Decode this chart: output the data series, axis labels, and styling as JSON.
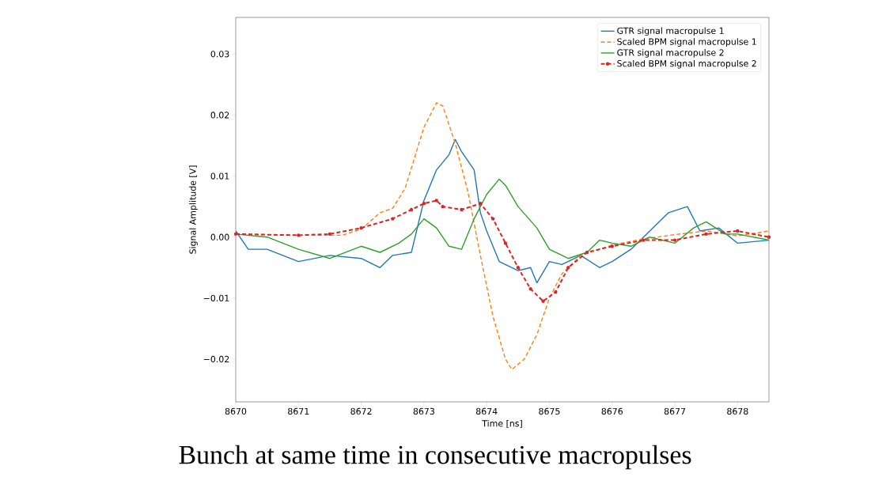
{
  "chart_data": {
    "type": "line",
    "xlabel": "Time [ns]",
    "ylabel": "Signal Amplitude [V]",
    "xlim": [
      8670,
      8678.5
    ],
    "xticks": [
      8670,
      8671,
      8672,
      8673,
      8674,
      8675,
      8676,
      8677,
      8678
    ],
    "ylim": [
      -0.027,
      0.036
    ],
    "yticks": [
      {
        "value": -0.02,
        "label": "−0.02"
      },
      {
        "value": -0.01,
        "label": "−0.01"
      },
      {
        "value": 0,
        "label": "0.00"
      },
      {
        "value": 0.01,
        "label": "0.01"
      },
      {
        "value": 0.02,
        "label": "0.02"
      },
      {
        "value": 0.03,
        "label": "0.03"
      }
    ],
    "legend": "top right",
    "grid": false,
    "annotations": [
      "Bunch at same time in consecutive macropulses"
    ],
    "series": [
      {
        "name": "GTR signal macropulse 1",
        "color": "#1f77b4",
        "line_style": "solid",
        "x": [
          8670,
          8670.2,
          8670.5,
          8671,
          8671.5,
          8672,
          8672.3,
          8672.5,
          8672.8,
          8673,
          8673.2,
          8673.4,
          8673.5,
          8673.6,
          8673.8,
          8673.9,
          8674,
          8674.2,
          8674.5,
          8674.7,
          8674.8,
          8675,
          8675.2,
          8675.5,
          8675.8,
          8676,
          8676.3,
          8676.6,
          8676.9,
          8677.2,
          8677.4,
          8677.7,
          8678,
          8678.5
        ],
        "values": [
          0.001,
          -0.002,
          -0.002,
          -0.004,
          -0.003,
          -0.0035,
          -0.005,
          -0.003,
          -0.0025,
          0.006,
          0.011,
          0.0135,
          0.016,
          0.014,
          0.011,
          0.004,
          0.001,
          -0.004,
          -0.0055,
          -0.005,
          -0.0075,
          -0.004,
          -0.0045,
          -0.003,
          -0.005,
          -0.004,
          -0.002,
          0.001,
          0.004,
          0.005,
          0.001,
          0.0015,
          -0.001,
          -0.0005
        ]
      },
      {
        "name": "Scaled BPM signal macropulse 1",
        "color": "#ff7f0e",
        "line_style": "dashed",
        "x": [
          8670,
          8671,
          8671.7,
          8672,
          8672.3,
          8672.5,
          8672.7,
          8673,
          8673.2,
          8673.3,
          8673.5,
          8673.7,
          8673.9,
          8674.1,
          8674.3,
          8674.4,
          8674.6,
          8674.8,
          8675,
          8675.2,
          8675.5,
          8676,
          8676.5,
          8677,
          8677.5,
          8678,
          8678.5
        ],
        "values": [
          0.0005,
          0.0003,
          0.0003,
          0.0013,
          0.004,
          0.0047,
          0.008,
          0.018,
          0.022,
          0.0215,
          0.0153,
          0.0075,
          -0.003,
          -0.013,
          -0.02,
          -0.0217,
          -0.02,
          -0.016,
          -0.01,
          -0.006,
          -0.003,
          -0.0013,
          -0.0003,
          0.0004,
          0.001,
          0.0002,
          0.001
        ]
      },
      {
        "name": "GTR signal macropulse 2",
        "color": "#2ca02c",
        "line_style": "solid",
        "x": [
          8670,
          8670.5,
          8671,
          8671.5,
          8672,
          8672.3,
          8672.6,
          8672.8,
          8673,
          8673.2,
          8673.4,
          8673.6,
          8673.8,
          8674,
          8674.2,
          8674.3,
          8674.5,
          8674.8,
          8675,
          8675.3,
          8675.6,
          8675.8,
          8676,
          8676.3,
          8676.6,
          8677,
          8677.3,
          8677.5,
          8677.8,
          8678,
          8678.5
        ],
        "values": [
          0.0005,
          0,
          -0.002,
          -0.0035,
          -0.0015,
          -0.0025,
          -0.001,
          0.0005,
          0.003,
          0.0015,
          -0.0015,
          -0.002,
          0.003,
          0.007,
          0.0095,
          0.0085,
          0.005,
          0.0015,
          -0.002,
          -0.0035,
          -0.0025,
          -0.0005,
          -0.001,
          -0.0015,
          0,
          -0.001,
          0.0015,
          0.0025,
          0.0005,
          0.0005,
          -0.0005
        ]
      },
      {
        "name": "Scaled BPM signal macropulse 2",
        "color": "#d62728",
        "line_style": "dashed",
        "marker": "circle",
        "x": [
          8670,
          8671,
          8671.5,
          8672,
          8672.5,
          8672.8,
          8673,
          8673.2,
          8673.3,
          8673.6,
          8673.9,
          8674.1,
          8674.3,
          8674.5,
          8674.7,
          8674.9,
          8675.1,
          8675.3,
          8675.6,
          8676,
          8676.5,
          8677,
          8677.5,
          8678,
          8678.5
        ],
        "values": [
          0.0005,
          0.0003,
          0.0005,
          0.0015,
          0.003,
          0.0045,
          0.0055,
          0.006,
          0.005,
          0.0045,
          0.0055,
          0.003,
          -0.001,
          -0.005,
          -0.0085,
          -0.0105,
          -0.009,
          -0.005,
          -0.0025,
          -0.0015,
          -0.0005,
          -0.0005,
          0.0005,
          0.001,
          0
        ]
      }
    ]
  }
}
